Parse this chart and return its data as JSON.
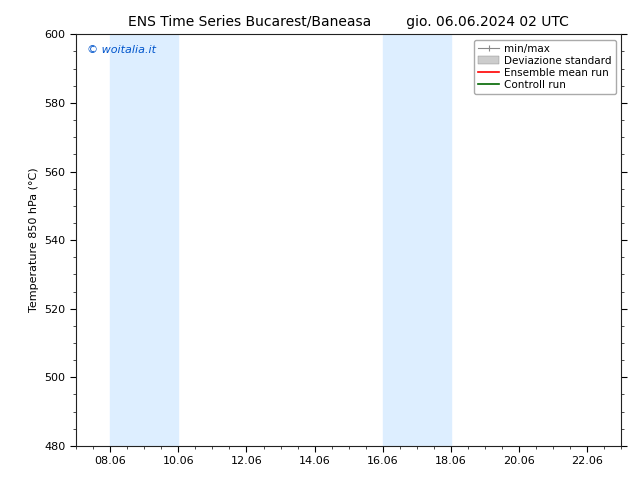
{
  "title_left": "ENS Time Series Bucarest/Baneasa",
  "title_right": "gio. 06.06.2024 02 UTC",
  "ylabel": "Temperature 850 hPa (°C)",
  "watermark": "© woitalia.it",
  "watermark_color": "#0055cc",
  "ylim": [
    480,
    600
  ],
  "yticks": [
    480,
    500,
    520,
    540,
    560,
    580,
    600
  ],
  "xtick_labels": [
    "08.06",
    "10.06",
    "12.06",
    "14.06",
    "16.06",
    "18.06",
    "20.06",
    "22.06"
  ],
  "xtick_values": [
    48,
    96,
    144,
    192,
    240,
    288,
    336,
    384
  ],
  "xmin": 24,
  "xmax": 408,
  "shaded_bands": [
    {
      "xmin": 48,
      "xmax": 96
    },
    {
      "xmin": 240,
      "xmax": 288
    }
  ],
  "shaded_color": "#ddeeff",
  "background_color": "#ffffff",
  "plot_bg_color": "#ffffff",
  "font_size_title": 10,
  "font_size_labels": 8,
  "font_size_ticks": 8,
  "font_size_legend": 7.5,
  "font_size_watermark": 8
}
